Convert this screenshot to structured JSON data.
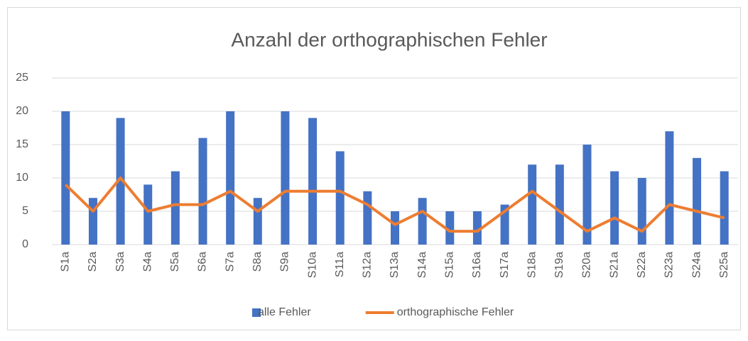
{
  "chart_data": {
    "type": "bar",
    "title": "Anzahl der orthographischen Fehler",
    "categories": [
      "S1a",
      "S2a",
      "S3a",
      "S4a",
      "S5a",
      "S6a",
      "S7a",
      "S8a",
      "S9a",
      "S10a",
      "S11a",
      "S12a",
      "S13a",
      "S14a",
      "S15a",
      "S16a",
      "S17a",
      "S18a",
      "S19a",
      "S20a",
      "S21a",
      "S22a",
      "S23a",
      "S24a",
      "S25a"
    ],
    "series": [
      {
        "name": "alle Fehler",
        "type": "bar",
        "color": "#4472c4",
        "values": [
          20,
          7,
          19,
          9,
          11,
          16,
          20,
          7,
          20,
          19,
          14,
          8,
          5,
          7,
          5,
          5,
          6,
          12,
          12,
          15,
          11,
          10,
          17,
          13,
          11
        ]
      },
      {
        "name": "orthographische Fehler",
        "type": "line",
        "color": "#ed7d31",
        "values": [
          9,
          5,
          10,
          5,
          6,
          6,
          8,
          5,
          8,
          8,
          8,
          6,
          3,
          5,
          2,
          2,
          5,
          8,
          5,
          2,
          4,
          2,
          6,
          5,
          4
        ]
      }
    ],
    "ylim": [
      0,
      25
    ],
    "yticks": [
      0,
      5,
      10,
      15,
      20,
      25
    ],
    "grid": true,
    "legend": "bottom"
  }
}
